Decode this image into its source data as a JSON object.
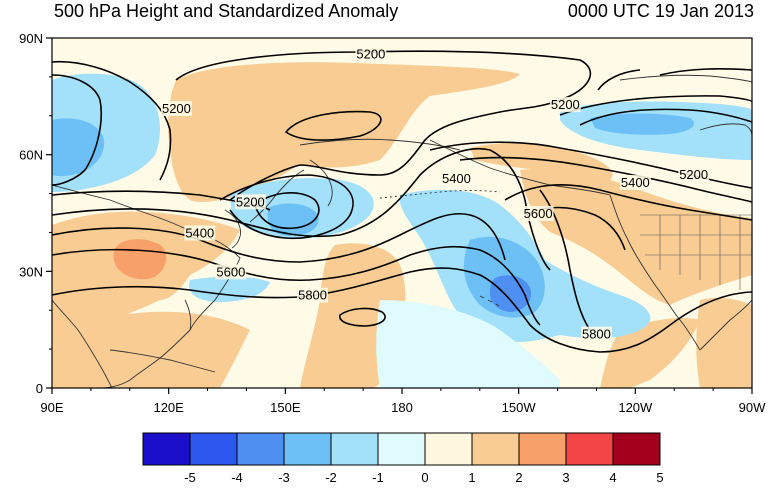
{
  "title": "500 hPa Height and Standardized Anomaly",
  "datetime": "0000 UTC 19 Jan 2013",
  "map": {
    "projection": "cylindrical-equidistant",
    "lon_range": [
      90,
      270
    ],
    "lat_range": [
      0,
      90
    ],
    "ocean_fill": "#fffbe6",
    "lat_ticks": [
      "0",
      "30N",
      "60N",
      "90N"
    ],
    "lon_ticks": [
      "90E",
      "120E",
      "150E",
      "180",
      "150W",
      "120W",
      "90W"
    ],
    "contour_labels": [
      {
        "text": "5200",
        "lon": 172,
        "lat": 86
      },
      {
        "text": "5200",
        "lon": 122,
        "lat": 72
      },
      {
        "text": "5200",
        "lon": 222,
        "lat": 73
      },
      {
        "text": "5200",
        "lon": 255,
        "lat": 55
      },
      {
        "text": "5400",
        "lon": 194,
        "lat": 54
      },
      {
        "text": "5400",
        "lon": 240,
        "lat": 53
      },
      {
        "text": "5400",
        "lon": 128,
        "lat": 40
      },
      {
        "text": "5200",
        "lon": 141,
        "lat": 48
      },
      {
        "text": "5600",
        "lon": 136,
        "lat": 30
      },
      {
        "text": "5600",
        "lon": 215,
        "lat": 45
      },
      {
        "text": "5800",
        "lon": 157,
        "lat": 24
      },
      {
        "text": "5800",
        "lon": 230,
        "lat": 14
      }
    ]
  },
  "colorbar": {
    "labels": [
      "-5",
      "-4",
      "-3",
      "-2",
      "-1",
      "0",
      "1",
      "2",
      "3",
      "4",
      "5"
    ],
    "colors": [
      "#1c0fcc",
      "#2e57ef",
      "#4f8ff2",
      "#6dc0f5",
      "#a3e0f9",
      "#e0fbfd",
      "#fff7df",
      "#f9cc94",
      "#f7a069",
      "#f34546",
      "#a3001e"
    ]
  }
}
